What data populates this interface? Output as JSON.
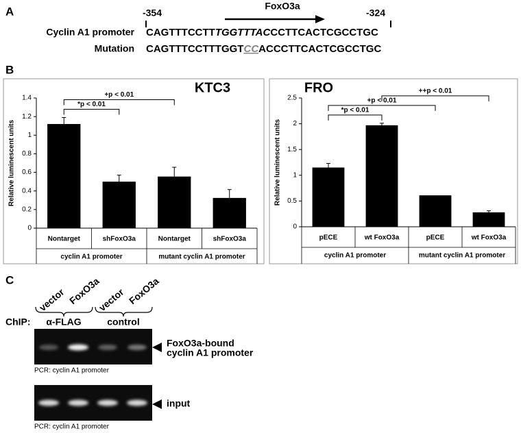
{
  "panel_a": {
    "label": "A",
    "start": "-354",
    "end": "-324",
    "motif_label": "FoxO3a",
    "rows": [
      {
        "label": "Cyclin A1 promoter",
        "parts": [
          "CAGTTTCCTT",
          "TGGTTTAC",
          "CCTTCACTCGCCTGC"
        ]
      },
      {
        "label": "Mutation",
        "parts": [
          "CAGTTTCCTTTGGT",
          "CC",
          "ACCCTTCACTCGCCTGC"
        ]
      }
    ]
  },
  "panel_b": {
    "label": "B"
  },
  "chart_data": [
    {
      "type": "bar",
      "title": "KTC3",
      "ylabel": "Relative luminescent units",
      "categories": [
        "Nontarget",
        "shFoxO3a",
        "Nontarget",
        "shFoxO3a"
      ],
      "groups": [
        "cyclin A1 promoter",
        "mutant cyclin A1 promoter"
      ],
      "values": [
        1.12,
        0.5,
        0.555,
        0.325
      ],
      "errors": [
        0.07,
        0.07,
        0.1,
        0.09
      ],
      "color": "#000000",
      "ylim": [
        0,
        1.4
      ],
      "yticks": [
        0,
        0.2,
        0.4,
        0.6,
        0.8,
        1,
        1.2,
        1.4
      ],
      "annotations": [
        {
          "text": "*p < 0.01",
          "from": 0,
          "to": 1
        },
        {
          "text": "+p < 0.01",
          "from": 0,
          "to": 2
        }
      ]
    },
    {
      "type": "bar",
      "title": "FRO",
      "ylabel": "Relative luminescent units",
      "categories": [
        "pECE",
        "wt FoxO3a",
        "pECE",
        "wt FoxO3a"
      ],
      "groups": [
        "cyclin A1 promoter",
        "mutant cyclin A1 promoter"
      ],
      "values": [
        1.15,
        1.97,
        0.61,
        0.28
      ],
      "errors": [
        0.08,
        0.04,
        null,
        0.03
      ],
      "color": "#000000",
      "ylim": [
        0,
        2.5
      ],
      "yticks": [
        0,
        0.5,
        1,
        1.5,
        2,
        2.5
      ],
      "annotations": [
        {
          "text": "*p < 0.01",
          "from": 0,
          "to": 1
        },
        {
          "text": "+p < 0.01",
          "from": 0,
          "to": 2
        },
        {
          "text": "++p < 0.01",
          "from": 1,
          "to": 3
        }
      ]
    }
  ],
  "panel_c": {
    "label": "C",
    "lanes": [
      "vector",
      "FoxO3a",
      "vector",
      "FoxO3a"
    ],
    "chip_label": "ChIP:",
    "chip_groups": [
      "α-FLAG",
      "control"
    ],
    "gels": [
      {
        "target_lines": [
          "FoxO3a-bound",
          "cyclin A1 promoter"
        ],
        "caption": "PCR: cyclin A1 promoter"
      },
      {
        "target_lines": [
          "input"
        ],
        "caption": "PCR: cyclin A1 promoter"
      }
    ]
  }
}
